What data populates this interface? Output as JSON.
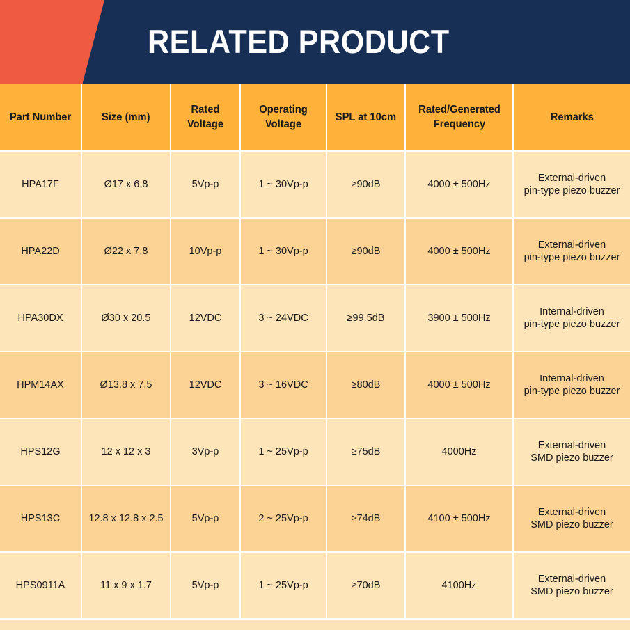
{
  "header": {
    "title": "RELATED PRODUCT"
  },
  "table": {
    "columns": [
      "Part Number",
      "Size (mm)",
      "Rated Voltage",
      "Operating Voltage",
      "SPL at 10cm",
      "Rated/Generated Frequency",
      "Remarks"
    ],
    "rows": [
      {
        "part": "HPA17F",
        "size": "Ø17 x 6.8",
        "rated": "5Vp-p",
        "operating": "1 ~ 30Vp-p",
        "spl": "≥90dB",
        "freq": "4000 ± 500Hz",
        "remark1": "External-driven",
        "remark2": "pin-type piezo buzzer"
      },
      {
        "part": "HPA22D",
        "size": "Ø22 x 7.8",
        "rated": "10Vp-p",
        "operating": "1 ~ 30Vp-p",
        "spl": "≥90dB",
        "freq": "4000 ± 500Hz",
        "remark1": "External-driven",
        "remark2": "pin-type piezo buzzer"
      },
      {
        "part": "HPA30DX",
        "size": "Ø30 x 20.5",
        "rated": "12VDC",
        "operating": "3 ~ 24VDC",
        "spl": "≥99.5dB",
        "freq": "3900 ± 500Hz",
        "remark1": "Internal-driven",
        "remark2": "pin-type piezo buzzer"
      },
      {
        "part": "HPM14AX",
        "size": "Ø13.8 x 7.5",
        "rated": "12VDC",
        "operating": "3 ~ 16VDC",
        "spl": "≥80dB",
        "freq": "4000 ± 500Hz",
        "remark1": "Internal-driven",
        "remark2": "pin-type piezo buzzer"
      },
      {
        "part": "HPS12G",
        "size": "12 x 12 x 3",
        "rated": "3Vp-p",
        "operating": "1 ~ 25Vp-p",
        "spl": "≥75dB",
        "freq": "4000Hz",
        "remark1": "External-driven",
        "remark2": "SMD piezo buzzer"
      },
      {
        "part": "HPS13C",
        "size": "12.8 x 12.8 x 2.5",
        "rated": "5Vp-p",
        "operating": "2 ~ 25Vp-p",
        "spl": "≥74dB",
        "freq": "4100 ± 500Hz",
        "remark1": "External-driven",
        "remark2": "SMD piezo buzzer"
      },
      {
        "part": "HPS0911A",
        "size": "11 x 9 x 1.7",
        "rated": "5Vp-p",
        "operating": "1 ~ 25Vp-p",
        "spl": "≥70dB",
        "freq": "4100Hz",
        "remark1": "External-driven",
        "remark2": "SMD piezo buzzer"
      }
    ]
  },
  "colors": {
    "navy": "#172f55",
    "coral": "#ef5a43",
    "header_orange": "#ffb13a",
    "row_light": "#fee4b9",
    "row_dark": "#fdd395"
  }
}
